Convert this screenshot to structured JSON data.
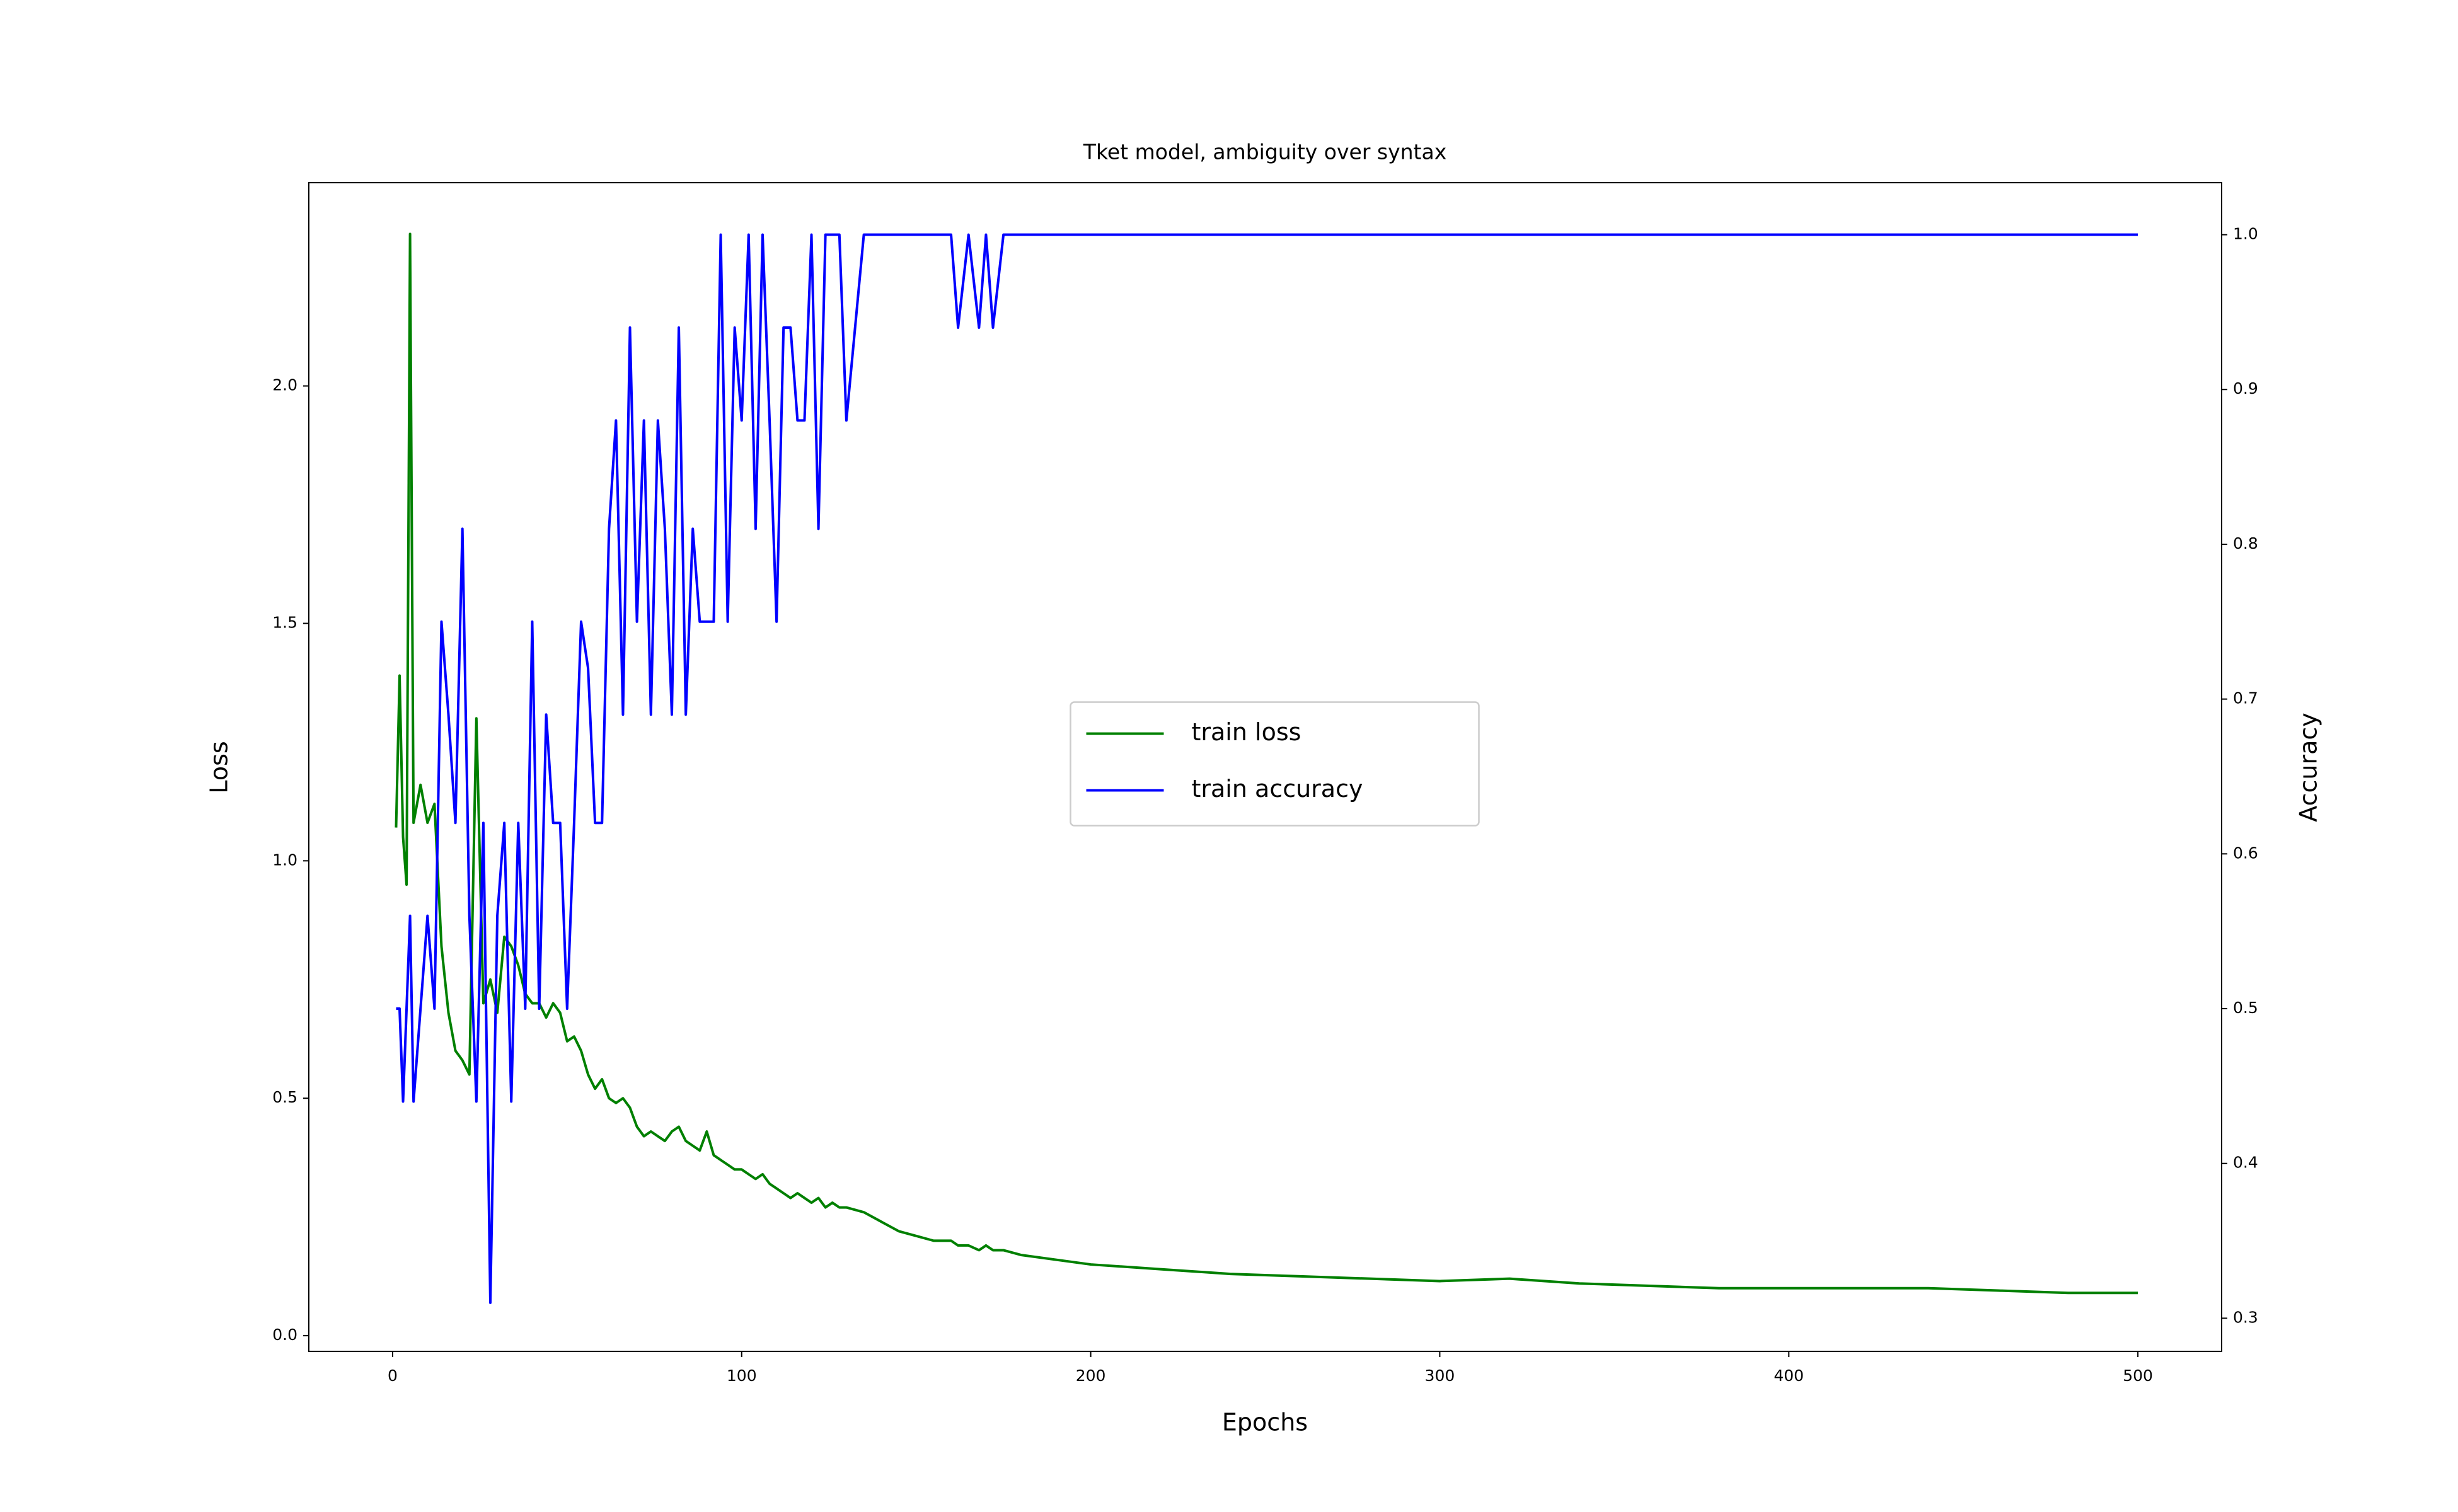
{
  "chart_data": {
    "type": "line",
    "title": "Tket model, ambiguity over syntax",
    "x_label": "Epochs",
    "y_label": "Loss",
    "y2_label": "Accuracy",
    "x": [
      1,
      2,
      3,
      4,
      5,
      6,
      8,
      10,
      12,
      14,
      16,
      18,
      20,
      22,
      24,
      26,
      28,
      30,
      32,
      34,
      36,
      38,
      40,
      42,
      44,
      46,
      48,
      50,
      52,
      54,
      56,
      58,
      60,
      62,
      64,
      66,
      68,
      70,
      72,
      74,
      76,
      78,
      80,
      82,
      84,
      86,
      88,
      90,
      92,
      94,
      96,
      98,
      100,
      102,
      104,
      106,
      108,
      110,
      112,
      114,
      116,
      118,
      120,
      122,
      124,
      126,
      128,
      130,
      135,
      140,
      145,
      150,
      155,
      160,
      162,
      165,
      168,
      170,
      172,
      175,
      180,
      200,
      220,
      240,
      260,
      280,
      300,
      320,
      340,
      360,
      380,
      400,
      420,
      440,
      460,
      480,
      500
    ],
    "series": [
      {
        "name": "train loss",
        "color": "#008000",
        "axis": "y",
        "values": [
          1.07,
          1.39,
          1.05,
          0.95,
          2.32,
          1.08,
          1.16,
          1.08,
          1.12,
          0.82,
          0.68,
          0.6,
          0.58,
          0.55,
          1.3,
          0.7,
          0.75,
          0.68,
          0.84,
          0.82,
          0.78,
          0.72,
          0.7,
          0.7,
          0.67,
          0.7,
          0.68,
          0.62,
          0.63,
          0.6,
          0.55,
          0.52,
          0.54,
          0.5,
          0.49,
          0.5,
          0.48,
          0.44,
          0.42,
          0.43,
          0.42,
          0.41,
          0.43,
          0.44,
          0.41,
          0.4,
          0.39,
          0.43,
          0.38,
          0.37,
          0.36,
          0.35,
          0.35,
          0.34,
          0.33,
          0.34,
          0.32,
          0.31,
          0.3,
          0.29,
          0.3,
          0.29,
          0.28,
          0.29,
          0.27,
          0.28,
          0.27,
          0.27,
          0.26,
          0.24,
          0.22,
          0.21,
          0.2,
          0.2,
          0.19,
          0.19,
          0.18,
          0.19,
          0.18,
          0.18,
          0.17,
          0.15,
          0.14,
          0.13,
          0.125,
          0.12,
          0.115,
          0.12,
          0.11,
          0.105,
          0.1,
          0.1,
          0.1,
          0.1,
          0.095,
          0.09,
          0.09
        ]
      },
      {
        "name": "train accuracy",
        "color": "#0000ff",
        "axis": "y2",
        "values": [
          0.5,
          0.5,
          0.44,
          0.5,
          0.56,
          0.44,
          0.5,
          0.56,
          0.5,
          0.75,
          0.69,
          0.62,
          0.81,
          0.56,
          0.44,
          0.62,
          0.31,
          0.56,
          0.62,
          0.44,
          0.62,
          0.5,
          0.75,
          0.5,
          0.69,
          0.62,
          0.62,
          0.5,
          0.62,
          0.75,
          0.72,
          0.62,
          0.62,
          0.81,
          0.88,
          0.69,
          0.94,
          0.75,
          0.88,
          0.69,
          0.88,
          0.81,
          0.69,
          0.94,
          0.69,
          0.81,
          0.75,
          0.75,
          0.75,
          1.0,
          0.75,
          0.94,
          0.88,
          1.0,
          0.81,
          1.0,
          0.88,
          0.75,
          0.94,
          0.94,
          0.88,
          0.88,
          1.0,
          0.81,
          1.0,
          1.0,
          1.0,
          0.88,
          1.0,
          1.0,
          1.0,
          1.0,
          1.0,
          1.0,
          0.94,
          1.0,
          0.94,
          1.0,
          0.94,
          1.0,
          1.0,
          1.0,
          1.0,
          1.0,
          1.0,
          1.0,
          1.0,
          1.0,
          1.0,
          1.0,
          1.0,
          1.0,
          1.0,
          1.0,
          1.0,
          1.0,
          1.0
        ]
      }
    ],
    "xlim": [
      -24.0,
      524.0
    ],
    "xticks": [
      0,
      100,
      200,
      300,
      400,
      500
    ],
    "ylim": [
      -0.033,
      2.428
    ],
    "yticks": [
      {
        "value": 0,
        "label": "0.0"
      },
      0.5,
      {
        "value": 1,
        "label": "1.0"
      },
      1.5,
      {
        "value": 2,
        "label": "2.0"
      }
    ],
    "y2lim": [
      0.2786,
      1.0336
    ],
    "y2ticks": [
      0.3,
      0.4,
      0.5,
      0.6,
      0.7,
      0.8,
      0.9,
      {
        "value": 1,
        "label": "1.0"
      }
    ],
    "legend": "center",
    "grid": false
  }
}
